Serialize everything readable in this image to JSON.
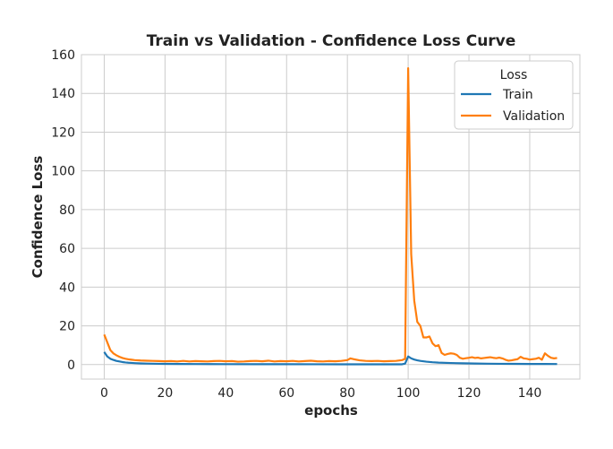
{
  "chart_data": {
    "type": "line",
    "title": "Train vs Validation - Confidence Loss Curve",
    "xlabel": "epochs",
    "ylabel": "Confidence Loss",
    "xlim": [
      -7.5,
      156.5
    ],
    "ylim": [
      -7.5,
      160
    ],
    "xticks": [
      0,
      20,
      40,
      60,
      80,
      100,
      120,
      140
    ],
    "yticks": [
      0,
      20,
      40,
      60,
      80,
      100,
      120,
      140,
      160
    ],
    "grid": true,
    "legend": {
      "title": "Loss",
      "position": "top-right"
    },
    "series": [
      {
        "name": "Train",
        "color": "#1f77b4",
        "points": [
          [
            0,
            6.5
          ],
          [
            1,
            4.2
          ],
          [
            2,
            3.0
          ],
          [
            3,
            2.4
          ],
          [
            4,
            1.9
          ],
          [
            5,
            1.6
          ],
          [
            6,
            1.3
          ],
          [
            7,
            1.1
          ],
          [
            8,
            0.95
          ],
          [
            9,
            0.85
          ],
          [
            10,
            0.75
          ],
          [
            12,
            0.6
          ],
          [
            14,
            0.5
          ],
          [
            16,
            0.45
          ],
          [
            18,
            0.4
          ],
          [
            20,
            0.35
          ],
          [
            25,
            0.3
          ],
          [
            30,
            0.28
          ],
          [
            35,
            0.25
          ],
          [
            40,
            0.22
          ],
          [
            50,
            0.2
          ],
          [
            60,
            0.18
          ],
          [
            70,
            0.16
          ],
          [
            80,
            0.15
          ],
          [
            90,
            0.14
          ],
          [
            98,
            0.14
          ],
          [
            99,
            0.5
          ],
          [
            100,
            4.2
          ],
          [
            101,
            3.2
          ],
          [
            102,
            2.6
          ],
          [
            103,
            2.2
          ],
          [
            104,
            1.9
          ],
          [
            106,
            1.5
          ],
          [
            108,
            1.2
          ],
          [
            110,
            1.0
          ],
          [
            114,
            0.8
          ],
          [
            118,
            0.65
          ],
          [
            122,
            0.55
          ],
          [
            126,
            0.45
          ],
          [
            130,
            0.4
          ],
          [
            135,
            0.35
          ],
          [
            140,
            0.32
          ],
          [
            145,
            0.3
          ],
          [
            149,
            0.28
          ]
        ]
      },
      {
        "name": "Validation",
        "color": "#ff7f0e",
        "points": [
          [
            0,
            15.5
          ],
          [
            1,
            11.5
          ],
          [
            2,
            7.5
          ],
          [
            3,
            5.8
          ],
          [
            4,
            4.8
          ],
          [
            5,
            4.0
          ],
          [
            6,
            3.4
          ],
          [
            7,
            3.0
          ],
          [
            8,
            2.7
          ],
          [
            9,
            2.5
          ],
          [
            10,
            2.3
          ],
          [
            12,
            2.1
          ],
          [
            14,
            2.0
          ],
          [
            16,
            1.9
          ],
          [
            18,
            1.8
          ],
          [
            20,
            1.7
          ],
          [
            22,
            1.8
          ],
          [
            24,
            1.6
          ],
          [
            26,
            1.9
          ],
          [
            28,
            1.6
          ],
          [
            30,
            1.8
          ],
          [
            32,
            1.7
          ],
          [
            34,
            1.6
          ],
          [
            36,
            1.8
          ],
          [
            38,
            1.9
          ],
          [
            40,
            1.7
          ],
          [
            42,
            1.8
          ],
          [
            44,
            1.5
          ],
          [
            46,
            1.6
          ],
          [
            48,
            1.8
          ],
          [
            50,
            1.9
          ],
          [
            52,
            1.7
          ],
          [
            54,
            2.0
          ],
          [
            56,
            1.6
          ],
          [
            58,
            1.8
          ],
          [
            60,
            1.7
          ],
          [
            62,
            1.9
          ],
          [
            64,
            1.6
          ],
          [
            66,
            1.8
          ],
          [
            68,
            2.0
          ],
          [
            70,
            1.7
          ],
          [
            72,
            1.6
          ],
          [
            74,
            1.8
          ],
          [
            76,
            1.7
          ],
          [
            78,
            1.9
          ],
          [
            80,
            2.3
          ],
          [
            81,
            3.2
          ],
          [
            82,
            2.8
          ],
          [
            84,
            2.2
          ],
          [
            86,
            1.9
          ],
          [
            88,
            1.8
          ],
          [
            90,
            1.9
          ],
          [
            92,
            1.7
          ],
          [
            94,
            1.8
          ],
          [
            96,
            1.9
          ],
          [
            98,
            2.3
          ],
          [
            99,
            3.0
          ],
          [
            100,
            153
          ],
          [
            101,
            57
          ],
          [
            102,
            33
          ],
          [
            103,
            22
          ],
          [
            104,
            20
          ],
          [
            105,
            14
          ],
          [
            106,
            14
          ],
          [
            107,
            14.5
          ],
          [
            108,
            11
          ],
          [
            109,
            9.5
          ],
          [
            110,
            10
          ],
          [
            111,
            6
          ],
          [
            112,
            5
          ],
          [
            113,
            5.5
          ],
          [
            114,
            5.8
          ],
          [
            115,
            5.6
          ],
          [
            116,
            5.0
          ],
          [
            117,
            3.5
          ],
          [
            118,
            3.0
          ],
          [
            119,
            3.3
          ],
          [
            120,
            3.5
          ],
          [
            121,
            3.8
          ],
          [
            122,
            3.4
          ],
          [
            123,
            3.6
          ],
          [
            124,
            3.2
          ],
          [
            125,
            3.4
          ],
          [
            126,
            3.6
          ],
          [
            127,
            3.8
          ],
          [
            128,
            3.5
          ],
          [
            129,
            3.3
          ],
          [
            130,
            3.6
          ],
          [
            131,
            3.2
          ],
          [
            132,
            2.5
          ],
          [
            133,
            2.0
          ],
          [
            134,
            2.2
          ],
          [
            135,
            2.5
          ],
          [
            136,
            2.8
          ],
          [
            137,
            4.0
          ],
          [
            138,
            3.2
          ],
          [
            139,
            3.0
          ],
          [
            140,
            2.6
          ],
          [
            141,
            2.8
          ],
          [
            142,
            3.0
          ],
          [
            143,
            3.5
          ],
          [
            144,
            2.5
          ],
          [
            145,
            5.8
          ],
          [
            146,
            4.5
          ],
          [
            147,
            3.5
          ],
          [
            148,
            3.2
          ],
          [
            149,
            3.4
          ]
        ]
      }
    ]
  }
}
